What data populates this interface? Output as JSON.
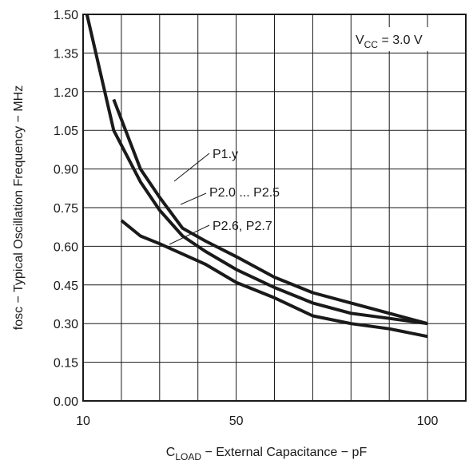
{
  "chart_data": {
    "type": "line",
    "title": "",
    "ylabel": "fosc − Typical Oscillation Frequency − MHz",
    "xlabel": {
      "main": "C",
      "sub": "LOAD",
      "rest": " − External Capacitance − pF"
    },
    "xlim": [
      10,
      110
    ],
    "ylim": [
      0.0,
      1.5
    ],
    "x_ticks": [
      10,
      50,
      100
    ],
    "x_grid": [
      10,
      20,
      30,
      40,
      50,
      60,
      70,
      80,
      90,
      100,
      110
    ],
    "y_ticks": [
      0.0,
      0.15,
      0.3,
      0.45,
      0.6,
      0.75,
      0.9,
      1.05,
      1.2,
      1.35,
      1.5
    ],
    "y_tick_labels": [
      "0.00",
      "0.15",
      "0.30",
      "0.45",
      "0.60",
      "0.75",
      "0.90",
      "1.05",
      "1.20",
      "1.35",
      "1.50"
    ],
    "grid": true,
    "condition": {
      "main": "V",
      "sub": "CC",
      "rest": " = 3.0 V"
    },
    "series": [
      {
        "name": "P1.y",
        "x": [
          18,
          25,
          30,
          36,
          42,
          50,
          60,
          70,
          80,
          90,
          100
        ],
        "y": [
          1.17,
          0.9,
          0.79,
          0.67,
          0.62,
          0.56,
          0.48,
          0.42,
          0.38,
          0.34,
          0.3
        ]
      },
      {
        "name": "P2.0 ... P2.5",
        "x": [
          11,
          18,
          25,
          30,
          36,
          42,
          50,
          60,
          70,
          80,
          90,
          100
        ],
        "y": [
          1.5,
          1.05,
          0.85,
          0.74,
          0.64,
          0.58,
          0.51,
          0.44,
          0.38,
          0.34,
          0.32,
          0.3
        ]
      },
      {
        "name": "P2.6, P2.7",
        "x": [
          20,
          25,
          30,
          36,
          42,
          50,
          60,
          70,
          80,
          90,
          100
        ],
        "y": [
          0.7,
          0.64,
          0.61,
          0.57,
          0.53,
          0.46,
          0.4,
          0.33,
          0.3,
          0.28,
          0.25
        ]
      }
    ]
  }
}
